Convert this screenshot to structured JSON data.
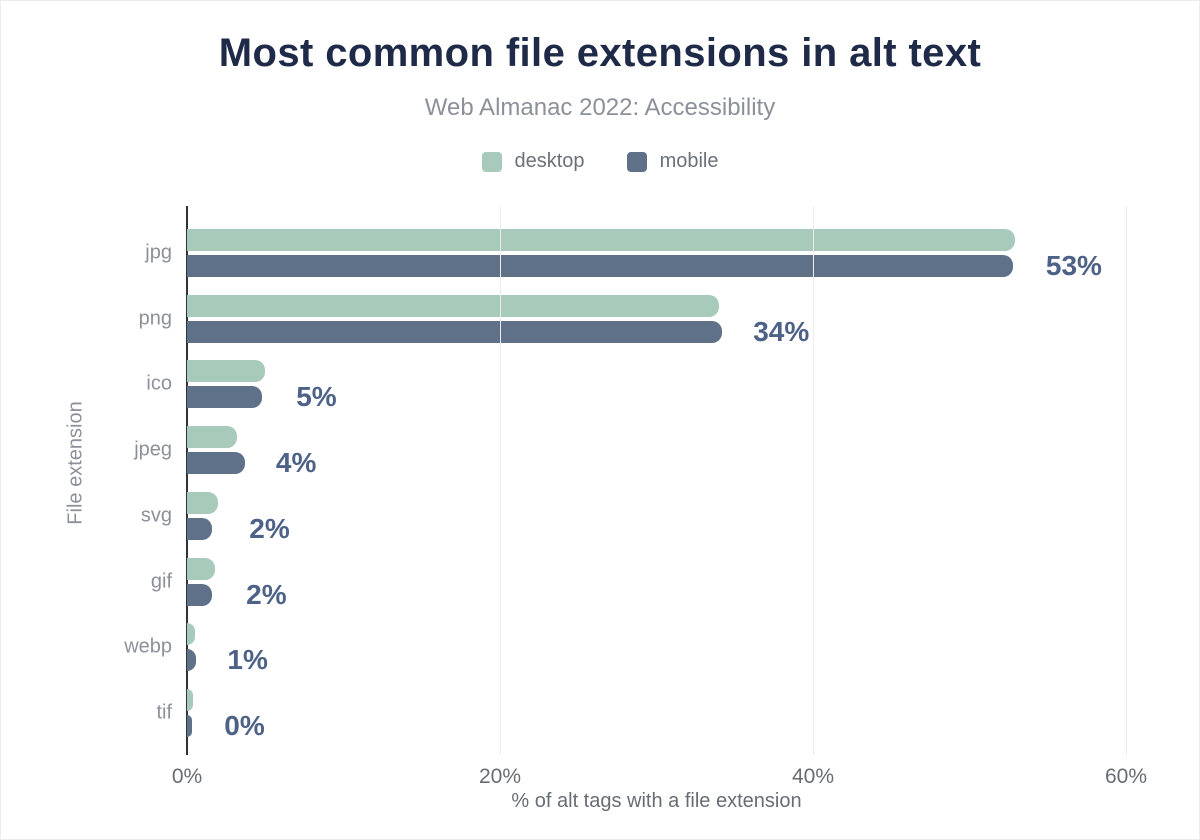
{
  "card": {
    "title": "Most common file extensions in alt text",
    "subtitle": "Web Almanac 2022: Accessibility"
  },
  "chart_data": {
    "type": "bar",
    "orientation": "horizontal",
    "title": "Most common file extensions in alt text",
    "subtitle": "Web Almanac 2022: Accessibility",
    "categories": [
      "jpg",
      "png",
      "ico",
      "jpeg",
      "svg",
      "gif",
      "webp",
      "tif"
    ],
    "series": [
      {
        "name": "desktop",
        "color": "#a8cabb",
        "values": [
          52.9,
          34.0,
          5.0,
          3.2,
          2.0,
          1.8,
          0.5,
          0.4
        ]
      },
      {
        "name": "mobile",
        "color": "#5f7089",
        "values": [
          52.8,
          34.2,
          4.8,
          3.7,
          1.6,
          1.6,
          0.6,
          0.3
        ]
      }
    ],
    "value_labels": [
      "53%",
      "34%",
      "5%",
      "4%",
      "2%",
      "2%",
      "1%",
      "0%"
    ],
    "value_label_color": "#4e6288",
    "xlabel": "% of alt tags with a file extension",
    "ylabel": "File extension",
    "xlim": [
      0,
      60
    ],
    "xticks": [
      {
        "value": 0,
        "label": "0%"
      },
      {
        "value": 20,
        "label": "20%"
      },
      {
        "value": 40,
        "label": "40%"
      },
      {
        "value": 60,
        "label": "60%"
      }
    ],
    "grid": "vertical",
    "legend_position": "top"
  }
}
